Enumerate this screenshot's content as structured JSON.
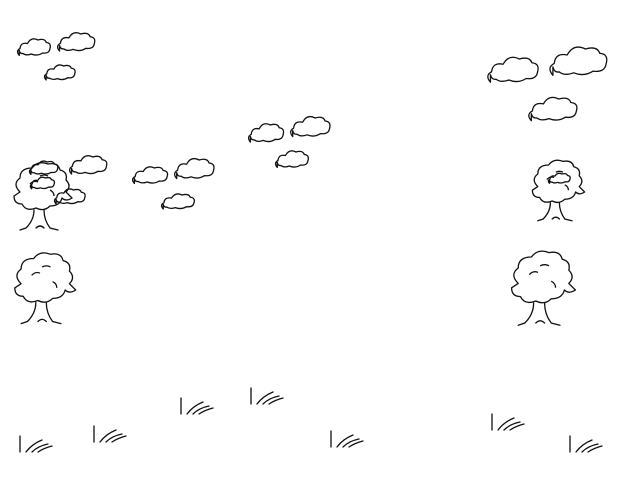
{
  "scene": {
    "background": "#ffffff",
    "stroke_color": "#111111",
    "clouds": [
      {
        "id": "cloud-1"
      },
      {
        "id": "cloud-2"
      },
      {
        "id": "cloud-3"
      },
      {
        "id": "cloud-4"
      },
      {
        "id": "cloud-5"
      },
      {
        "id": "cloud-6"
      },
      {
        "id": "cloud-7"
      },
      {
        "id": "cloud-8"
      },
      {
        "id": "cloud-9"
      },
      {
        "id": "cloud-10"
      },
      {
        "id": "cloud-11"
      },
      {
        "id": "cloud-12"
      },
      {
        "id": "cloud-13"
      },
      {
        "id": "cloud-14"
      },
      {
        "id": "cloud-15"
      },
      {
        "id": "cloud-16"
      },
      {
        "id": "cloud-17"
      }
    ],
    "trees": [
      {
        "id": "tree-1"
      },
      {
        "id": "tree-2"
      },
      {
        "id": "tree-3"
      },
      {
        "id": "tree-4"
      }
    ],
    "grass_tufts": [
      {
        "id": "grass-1"
      },
      {
        "id": "grass-2"
      },
      {
        "id": "grass-3"
      },
      {
        "id": "grass-4"
      },
      {
        "id": "grass-5"
      },
      {
        "id": "grass-6"
      },
      {
        "id": "grass-7"
      },
      {
        "id": "grass-8"
      }
    ]
  }
}
